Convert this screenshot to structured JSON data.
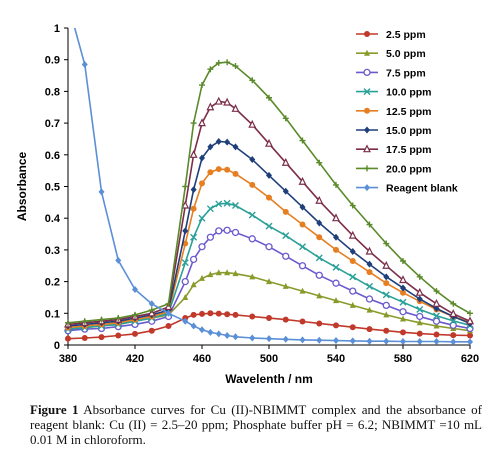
{
  "chart_data": {
    "type": "line",
    "xlabel": "Wavelenth / nm",
    "ylabel": "Absorbance",
    "xlim": [
      380,
      620
    ],
    "ylim": [
      0,
      1
    ],
    "x_ticks": [
      380,
      420,
      460,
      500,
      540,
      580,
      620
    ],
    "y_ticks": [
      0,
      0.1,
      0.2,
      0.3,
      0.4,
      0.5,
      0.6,
      0.7,
      0.8,
      0.9,
      1
    ],
    "grid": false,
    "legend_position": "top-right",
    "x": [
      380,
      390,
      400,
      410,
      420,
      430,
      440,
      450,
      455,
      460,
      465,
      470,
      475,
      480,
      490,
      500,
      510,
      520,
      530,
      540,
      550,
      560,
      570,
      580,
      590,
      600,
      610,
      620
    ],
    "series": [
      {
        "name": "2.5 ppm",
        "color": "#c0392b",
        "marker": "circle",
        "values": [
          0.02,
          0.022,
          0.025,
          0.03,
          0.035,
          0.045,
          0.06,
          0.085,
          0.095,
          0.098,
          0.1,
          0.099,
          0.097,
          0.095,
          0.09,
          0.085,
          0.08,
          0.074,
          0.068,
          0.062,
          0.056,
          0.05,
          0.045,
          0.04,
          0.036,
          0.033,
          0.031,
          0.03
        ]
      },
      {
        "name": "5.0  ppm",
        "color": "#8a9a2a",
        "marker": "triangle",
        "values": [
          0.05,
          0.055,
          0.06,
          0.065,
          0.075,
          0.085,
          0.095,
          0.15,
          0.19,
          0.21,
          0.222,
          0.228,
          0.228,
          0.225,
          0.215,
          0.2,
          0.185,
          0.17,
          0.155,
          0.14,
          0.125,
          0.11,
          0.095,
          0.082,
          0.07,
          0.06,
          0.052,
          0.045
        ]
      },
      {
        "name": "7.5 ppm",
        "color": "#6a5acd",
        "marker": "circle-open",
        "values": [
          0.045,
          0.05,
          0.052,
          0.058,
          0.065,
          0.075,
          0.09,
          0.2,
          0.27,
          0.31,
          0.34,
          0.36,
          0.362,
          0.355,
          0.335,
          0.31,
          0.28,
          0.25,
          0.22,
          0.195,
          0.17,
          0.145,
          0.125,
          0.105,
          0.09,
          0.075,
          0.062,
          0.052
        ]
      },
      {
        "name": "10.0 ppm",
        "color": "#2aa198",
        "marker": "x",
        "values": [
          0.05,
          0.055,
          0.06,
          0.065,
          0.075,
          0.085,
          0.1,
          0.26,
          0.34,
          0.4,
          0.43,
          0.445,
          0.447,
          0.44,
          0.41,
          0.375,
          0.345,
          0.31,
          0.275,
          0.245,
          0.215,
          0.185,
          0.158,
          0.135,
          0.112,
          0.092,
          0.076,
          0.062
        ]
      },
      {
        "name": "12.5 ppm",
        "color": "#e67e22",
        "marker": "circle",
        "values": [
          0.055,
          0.06,
          0.065,
          0.07,
          0.08,
          0.09,
          0.105,
          0.32,
          0.43,
          0.51,
          0.545,
          0.555,
          0.553,
          0.54,
          0.505,
          0.465,
          0.42,
          0.38,
          0.34,
          0.3,
          0.265,
          0.23,
          0.195,
          0.165,
          0.138,
          0.112,
          0.09,
          0.072
        ]
      },
      {
        "name": "15.0 ppm",
        "color": "#1f3f7a",
        "marker": "diamond",
        "values": [
          0.06,
          0.065,
          0.07,
          0.075,
          0.085,
          0.095,
          0.11,
          0.36,
          0.49,
          0.59,
          0.625,
          0.642,
          0.64,
          0.625,
          0.585,
          0.535,
          0.485,
          0.435,
          0.385,
          0.34,
          0.295,
          0.255,
          0.215,
          0.18,
          0.145,
          0.115,
          0.09,
          0.068
        ]
      },
      {
        "name": "17.5 ppm",
        "color": "#7b2d4a",
        "marker": "triangle-open",
        "values": [
          0.065,
          0.07,
          0.075,
          0.08,
          0.09,
          0.1,
          0.12,
          0.44,
          0.6,
          0.7,
          0.75,
          0.768,
          0.765,
          0.745,
          0.695,
          0.635,
          0.575,
          0.515,
          0.455,
          0.4,
          0.345,
          0.295,
          0.25,
          0.205,
          0.165,
          0.13,
          0.098,
          0.075
        ]
      },
      {
        "name": "20.0 ppm",
        "color": "#5a8a2a",
        "marker": "plus",
        "values": [
          0.07,
          0.075,
          0.08,
          0.085,
          0.095,
          0.11,
          0.13,
          0.5,
          0.7,
          0.82,
          0.87,
          0.89,
          0.892,
          0.88,
          0.835,
          0.78,
          0.715,
          0.645,
          0.575,
          0.505,
          0.44,
          0.38,
          0.32,
          0.265,
          0.215,
          0.17,
          0.13,
          0.1
        ]
      },
      {
        "name": "Reagent blank",
        "color": "#5b8fd6",
        "marker": "diamond",
        "values": [
          null,
          0.885,
          0.483,
          0.267,
          0.175,
          0.13,
          0.1,
          0.075,
          0.06,
          0.048,
          0.04,
          0.035,
          0.03,
          0.026,
          0.022,
          0.02,
          0.018,
          0.016,
          0.015,
          0.014,
          0.013,
          0.012,
          0.012,
          0.011,
          0.011,
          0.011,
          0.01,
          0.01
        ]
      }
    ]
  },
  "caption": {
    "label": "Figure 1",
    "text": " Absorbance curves for Cu (II)-NBIMMT complex and the absorbance of reagent blank: Cu (II) = 2.5–20 ppm; Phosphate buffer pH = 6.2; NBIMMT =10 mL 0.01 M in chloroform."
  }
}
